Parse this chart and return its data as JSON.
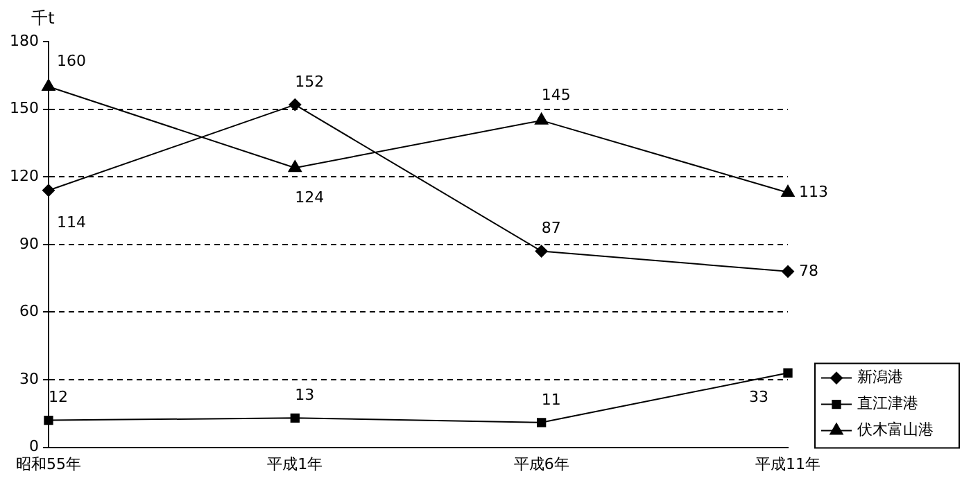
{
  "chart_data": {
    "type": "line",
    "ylabel": "千t",
    "categories": [
      "昭和55年",
      "平成1年",
      "平成6年",
      "平成11年"
    ],
    "series": [
      {
        "name": "新潟港",
        "color": "#000000",
        "marker": "diamond",
        "values": [
          114,
          152,
          87,
          78
        ]
      },
      {
        "name": "直江津港",
        "color": "#000000",
        "marker": "square",
        "values": [
          12,
          13,
          11,
          33
        ]
      },
      {
        "name": "伏木富山港",
        "color": "#000000",
        "marker": "triangle",
        "values": [
          160,
          124,
          145,
          113
        ]
      }
    ],
    "ylim": [
      0,
      180
    ],
    "yticks": [
      0,
      30,
      60,
      90,
      120,
      150,
      180
    ],
    "grid": "y",
    "legend": "bottom right",
    "data_labels": true
  }
}
